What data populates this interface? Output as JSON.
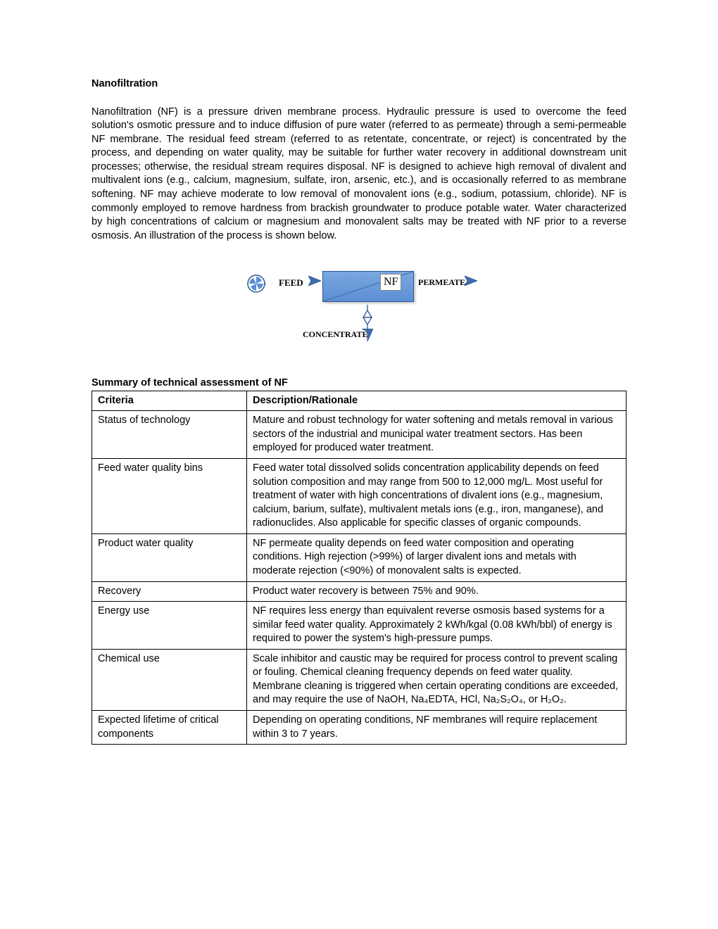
{
  "title": "Nanofiltration",
  "intro": "Nanofiltration (NF) is a pressure driven membrane process. Hydraulic pressure is used to overcome the feed solution's osmotic pressure and to induce diffusion of pure water (referred to as permeate) through a semi-permeable NF membrane. The residual feed stream (referred to as retentate, concentrate, or reject) is concentrated by the process, and depending on water quality, may be suitable for further water recovery in additional downstream unit processes; otherwise, the residual stream requires disposal. NF is designed to achieve high removal of divalent and multivalent ions (e.g., calcium, magnesium, sulfate, iron, arsenic, etc.), and is occasionally referred to as membrane softening. NF may achieve moderate to low removal of monovalent ions (e.g., sodium, potassium, chloride). NF is commonly employed to remove hardness from brackish groundwater to produce potable water. Water characterized by high concentrations of calcium or magnesium and monovalent salts may be treated with NF prior to a reverse osmosis. An illustration of the process is shown below.",
  "diagram": {
    "feed_label": "FEED",
    "nf_label": "NF",
    "permeate_label": "PERMEATE",
    "concentrate_label": "CONCENTRATE",
    "box_fill_top": "#7aa7e0",
    "box_fill_bottom": "#5b8fd4",
    "box_border": "#2a5a9a",
    "arrow_color": "#3f6fb0",
    "arrow_stroke": "#254b80",
    "pump_color": "#5c8ed1",
    "pump_stroke": "#2a5a9a"
  },
  "table_title": "Summary of technical assessment of NF",
  "table": {
    "headers": [
      "Criteria",
      "Description/Rationale"
    ],
    "rows": [
      {
        "criteria": "Status of technology",
        "desc": "Mature and robust technology for water softening and metals removal in various sectors of the industrial and municipal water treatment sectors. Has been employed for produced water treatment."
      },
      {
        "criteria": "Feed water quality bins",
        "desc": "Feed water total dissolved solids concentration applicability depends on feed solution composition and may range from 500 to 12,000 mg/L. Most useful for treatment of water with high concentrations of divalent ions (e.g., magnesium, calcium, barium, sulfate), multivalent metals ions (e.g., iron, manganese), and radionuclides. Also applicable for specific classes of organic compounds."
      },
      {
        "criteria": "Product water quality",
        "desc": "NF permeate quality depends on feed water composition and operating conditions. High rejection (>99%) of larger divalent ions and metals with moderate rejection (<90%) of monovalent salts is expected."
      },
      {
        "criteria": "Recovery",
        "desc": "Product water recovery is between 75% and 90%."
      },
      {
        "criteria": "Energy use",
        "desc": "NF requires less energy than equivalent reverse osmosis based systems for a similar feed water quality. Approximately 2 kWh/kgal (0.08 kWh/bbl) of energy is required to power the system's high-pressure pumps."
      },
      {
        "criteria": "Chemical use",
        "desc": "Scale inhibitor and caustic may be required for process control to prevent scaling or fouling. Chemical cleaning frequency depends on feed water quality. Membrane cleaning is triggered when certain operating conditions are exceeded, and may require the use of NaOH, Na₄EDTA, HCl, Na₂S₂O₄, or H₂O₂."
      },
      {
        "criteria": "Expected lifetime of critical components",
        "desc": "Depending on operating conditions, NF membranes will require replacement within 3 to 7 years."
      }
    ]
  }
}
